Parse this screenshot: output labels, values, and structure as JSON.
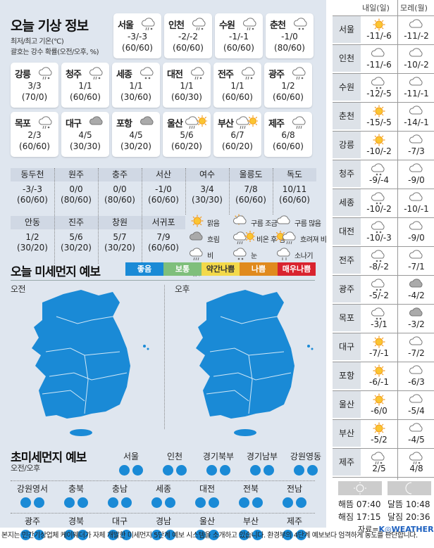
{
  "title": "오늘 기상 정보",
  "subtitle1": "최저/최고 기온(℃)",
  "subtitle2": "괄호는 강수 확률(오전/오후, %)",
  "cities": [
    {
      "name": "서울",
      "icon": "sleet",
      "temp": "-3/-3",
      "prob": "(60/60)"
    },
    {
      "name": "인천",
      "icon": "sleet",
      "temp": "-2/-2",
      "prob": "(60/60)"
    },
    {
      "name": "수원",
      "icon": "sleet",
      "temp": "-1/-1",
      "prob": "(60/60)"
    },
    {
      "name": "춘천",
      "icon": "snow",
      "temp": "-1/0",
      "prob": "(80/60)"
    },
    {
      "name": "강릉",
      "icon": "sleet",
      "temp": "3/3",
      "prob": "(70/0)"
    },
    {
      "name": "청주",
      "icon": "sleet",
      "temp": "1/1",
      "prob": "(60/60)"
    },
    {
      "name": "세종",
      "icon": "snow",
      "temp": "1/1",
      "prob": "(30/60)"
    },
    {
      "name": "대전",
      "icon": "sleet",
      "temp": "1/1",
      "prob": "(60/30)"
    },
    {
      "name": "전주",
      "icon": "sleet",
      "temp": "1/1",
      "prob": "(60/60)"
    },
    {
      "name": "광주",
      "icon": "sleet",
      "temp": "1/2",
      "prob": "(60/60)"
    },
    {
      "name": "목포",
      "icon": "sleet",
      "temp": "2/3",
      "prob": "(60/60)"
    },
    {
      "name": "대구",
      "icon": "overcast",
      "temp": "4/5",
      "prob": "(30/30)"
    },
    {
      "name": "포항",
      "icon": "overcast",
      "temp": "4/5",
      "prob": "(30/20)"
    },
    {
      "name": "울산",
      "icon": "rain-then-clear",
      "temp": "5/6",
      "prob": "(60/20)"
    },
    {
      "name": "부산",
      "icon": "rain-then-clear",
      "temp": "6/7",
      "prob": "(60/20)"
    },
    {
      "name": "제주",
      "icon": "rain",
      "temp": "6/8",
      "prob": "(60/60)"
    }
  ],
  "small_cities": [
    {
      "name": "동두천",
      "temp": "-3/-3",
      "prob": "(60/60)"
    },
    {
      "name": "원주",
      "temp": "0/0",
      "prob": "(80/60)"
    },
    {
      "name": "충주",
      "temp": "0/0",
      "prob": "(80/60)"
    },
    {
      "name": "서산",
      "temp": "-1/0",
      "prob": "(60/60)"
    },
    {
      "name": "여수",
      "temp": "3/4",
      "prob": "(30/30)"
    },
    {
      "name": "울릉도",
      "temp": "7/8",
      "prob": "(60/60)"
    },
    {
      "name": "독도",
      "temp": "10/11",
      "prob": "(60/60)"
    },
    {
      "name": "안동",
      "temp": "1/2",
      "prob": "(30/20)"
    },
    {
      "name": "진주",
      "temp": "5/6",
      "prob": "(30/20)"
    },
    {
      "name": "창원",
      "temp": "5/7",
      "prob": "(30/20)"
    },
    {
      "name": "서귀포",
      "temp": "7/9",
      "prob": "(60/60)"
    }
  ],
  "legend": [
    {
      "icon": "sun",
      "label": "맑음"
    },
    {
      "icon": "partly-cloudy",
      "label": "구름 조금"
    },
    {
      "icon": "cloud",
      "label": "구름 많음"
    },
    {
      "icon": "overcast",
      "label": "흐림"
    },
    {
      "icon": "rain-then-clear",
      "label": "비온 후 갬"
    },
    {
      "icon": "clear-then-rain",
      "label": "흐려져 비"
    },
    {
      "icon": "rain",
      "label": "비"
    },
    {
      "icon": "snow",
      "label": "눈"
    },
    {
      "icon": "shower",
      "label": "소나기"
    },
    {
      "icon": "sleet",
      "label": "비 또는 눈"
    }
  ],
  "dust": {
    "title": "오늘 미세먼지 예보",
    "levels": [
      {
        "label": "좋음",
        "color": "#1a8ad6"
      },
      {
        "label": "보통",
        "color": "#7fbf7b"
      },
      {
        "label": "약간나쁨",
        "color": "#f3d94a"
      },
      {
        "label": "나쁨",
        "color": "#e08a1e"
      },
      {
        "label": "매우나쁨",
        "color": "#d9232e"
      }
    ],
    "am": "오전",
    "pm": "오후",
    "map_color": "#1a8ad6"
  },
  "ultrafine": {
    "title": "초미세먼지 예보",
    "sub": "오전/오후",
    "regions": [
      {
        "name": "서울",
        "am": "좋음",
        "pm": "좋음"
      },
      {
        "name": "인천",
        "am": "좋음",
        "pm": "좋음"
      },
      {
        "name": "경기북부",
        "am": "좋음",
        "pm": "좋음"
      },
      {
        "name": "경기남부",
        "am": "좋음",
        "pm": "좋음"
      },
      {
        "name": "강원영동",
        "am": "좋음",
        "pm": "좋음"
      },
      {
        "name": "강원영서",
        "am": "좋음",
        "pm": "좋음"
      },
      {
        "name": "충북",
        "am": "좋음",
        "pm": "좋음"
      },
      {
        "name": "충남",
        "am": "좋음",
        "pm": "좋음"
      },
      {
        "name": "세종",
        "am": "좋음",
        "pm": "좋음"
      },
      {
        "name": "대전",
        "am": "좋음",
        "pm": "좋음"
      },
      {
        "name": "전북",
        "am": "좋음",
        "pm": "좋음"
      },
      {
        "name": "전남",
        "am": "좋음",
        "pm": "좋음"
      },
      {
        "name": "광주",
        "am": "좋음",
        "pm": "좋음"
      },
      {
        "name": "경북",
        "am": "좋음",
        "pm": "좋음"
      },
      {
        "name": "대구",
        "am": "좋음",
        "pm": "좋음"
      },
      {
        "name": "경남",
        "am": "좋음",
        "pm": "좋음"
      },
      {
        "name": "울산",
        "am": "좋음",
        "pm": "좋음"
      },
      {
        "name": "부산",
        "am": "좋음",
        "pm": "좋음"
      },
      {
        "name": "제주",
        "am": "좋음",
        "pm": "좋음"
      }
    ]
  },
  "forecast": {
    "head_tomorrow": "내일(일)",
    "head_dayafter": "모레(월)",
    "rows": [
      {
        "city": "서울",
        "d1_icon": "sun",
        "d1": "-11/-6",
        "d2_icon": "cloud",
        "d2": "-11/-2"
      },
      {
        "city": "인천",
        "d1_icon": "cloud",
        "d1": "-11/-6",
        "d2_icon": "cloud",
        "d2": "-10/-2"
      },
      {
        "city": "수원",
        "d1_icon": "snow",
        "d1": "-12/-5",
        "d2_icon": "cloud",
        "d2": "-11/-1"
      },
      {
        "city": "춘천",
        "d1_icon": "sun",
        "d1": "-15/-5",
        "d2_icon": "cloud",
        "d2": "-14/-1"
      },
      {
        "city": "강릉",
        "d1_icon": "sun",
        "d1": "-10/-2",
        "d2_icon": "cloud",
        "d2": "-7/3"
      },
      {
        "city": "청주",
        "d1_icon": "snow",
        "d1": "-9/-4",
        "d2_icon": "cloud",
        "d2": "-9/0"
      },
      {
        "city": "세종",
        "d1_icon": "snow",
        "d1": "-10/-2",
        "d2_icon": "cloud",
        "d2": "-10/-1"
      },
      {
        "city": "대전",
        "d1_icon": "snow",
        "d1": "-10/-3",
        "d2_icon": "cloud",
        "d2": "-9/0"
      },
      {
        "city": "전주",
        "d1_icon": "snow",
        "d1": "-8/-2",
        "d2_icon": "cloud",
        "d2": "-7/1"
      },
      {
        "city": "광주",
        "d1_icon": "snow",
        "d1": "-5/-2",
        "d2_icon": "overcast",
        "d2": "-4/2"
      },
      {
        "city": "목포",
        "d1_icon": "snow",
        "d1": "-3/1",
        "d2_icon": "overcast",
        "d2": "-3/2"
      },
      {
        "city": "대구",
        "d1_icon": "sun",
        "d1": "-7/-1",
        "d2_icon": "cloud",
        "d2": "-7/2"
      },
      {
        "city": "포항",
        "d1_icon": "sun",
        "d1": "-6/-1",
        "d2_icon": "cloud",
        "d2": "-6/3"
      },
      {
        "city": "울산",
        "d1_icon": "sun",
        "d1": "-6/0",
        "d2_icon": "cloud",
        "d2": "-5/4"
      },
      {
        "city": "부산",
        "d1_icon": "sun",
        "d1": "-5/2",
        "d2_icon": "cloud",
        "d2": "-4/5"
      },
      {
        "city": "제주",
        "d1_icon": "sleet",
        "d1": "2/5",
        "d2_icon": "sleet",
        "d2": "4/8"
      }
    ],
    "sunrise": "해뜸 07:40",
    "sunset": "해짐 17:15",
    "moonrise": "달뜸 10:48",
    "moonset": "달짐 20:36",
    "source_prefix": "자료=",
    "source_logo": "K◎WEATHER"
  },
  "footer": "본지는 민간기상업체 케이웨더가 자체 개발한 미세먼지 5단계 예보 시스템을 소개하고 있습니다. 환경부의 4단계 예보보다 엄격하게 농도를 판단합니다."
}
